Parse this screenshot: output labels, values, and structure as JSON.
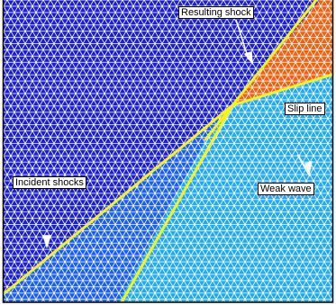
{
  "labels": {
    "resulting_shock": "Resulting shock",
    "slip_line": "Slip line",
    "incident_shocks": "Incident shocks",
    "weak_wave": "Weak wave"
  },
  "colors": {
    "region_upper_dark": "#1a1fd0",
    "region_lower_left_medium": "#1b5ff2",
    "region_lower_right_light": "#22a9ef",
    "region_upper_right_orange": "#f06010",
    "mesh_lines": "#ffffff",
    "shock_lines": "#f4f220",
    "frame": "#000000"
  }
}
